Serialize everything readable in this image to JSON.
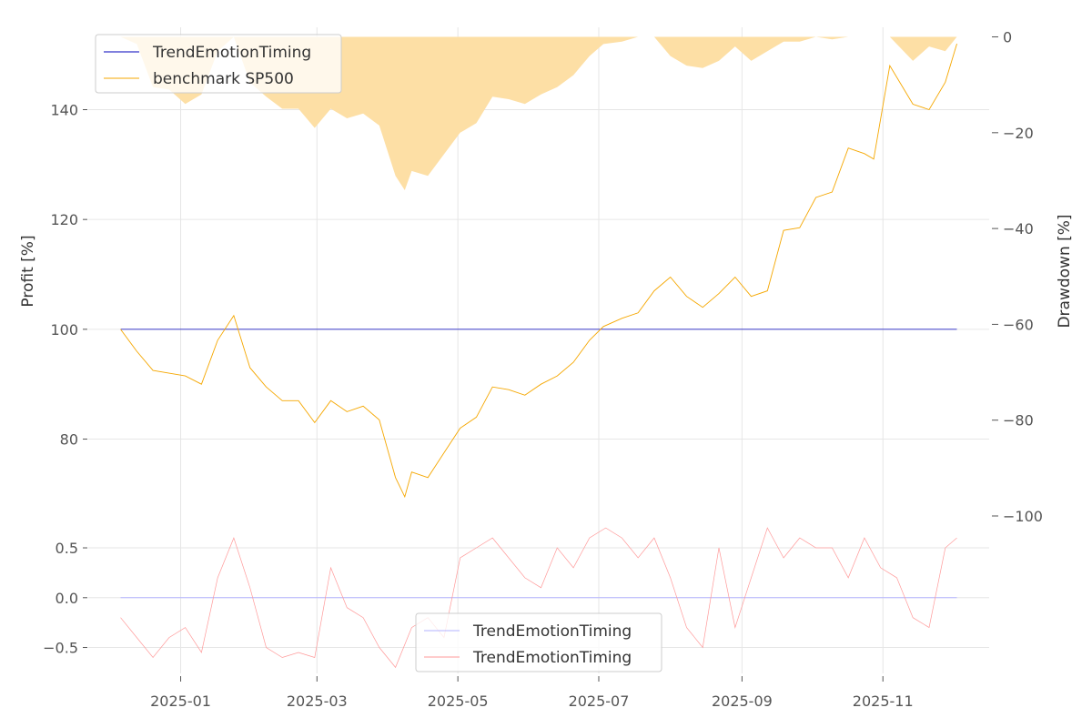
{
  "chart_data": [
    {
      "type": "line",
      "panel": "main",
      "ylabel": "Profit [%]",
      "ylabel_right": "Drawdown [%]",
      "x_dates": [
        "2024-12-06",
        "2024-12-13",
        "2024-12-20",
        "2024-12-27",
        "2025-01-03",
        "2025-01-10",
        "2025-01-17",
        "2025-01-24",
        "2025-01-31",
        "2025-02-07",
        "2025-02-14",
        "2025-02-21",
        "2025-02-28",
        "2025-03-07",
        "2025-03-14",
        "2025-03-21",
        "2025-03-28",
        "2025-04-04",
        "2025-04-08",
        "2025-04-11",
        "2025-04-18",
        "2025-04-25",
        "2025-05-02",
        "2025-05-09",
        "2025-05-16",
        "2025-05-23",
        "2025-05-30",
        "2025-06-06",
        "2025-06-13",
        "2025-06-20",
        "2025-06-27",
        "2025-07-03",
        "2025-07-11",
        "2025-07-18",
        "2025-07-25",
        "2025-08-01",
        "2025-08-08",
        "2025-08-15",
        "2025-08-22",
        "2025-08-29",
        "2025-09-05",
        "2025-09-12",
        "2025-09-19",
        "2025-09-26",
        "2025-10-03",
        "2025-10-10",
        "2025-10-17",
        "2025-10-24",
        "2025-10-28",
        "2025-11-04",
        "2025-11-14",
        "2025-11-21",
        "2025-11-28",
        "2025-12-03"
      ],
      "series": [
        {
          "name": "TrendEmotionTiming",
          "color": "#0000bb",
          "values": [
            100,
            100,
            100,
            100,
            100,
            100,
            100,
            100,
            100,
            100,
            100,
            100,
            100,
            100,
            100,
            100,
            100,
            100,
            100,
            100,
            100,
            100,
            100,
            100,
            100,
            100,
            100,
            100,
            100,
            100,
            100,
            100,
            100,
            100,
            100,
            100,
            100,
            100,
            100,
            100,
            100,
            100,
            100,
            100,
            100,
            100,
            100,
            100,
            100,
            100,
            100,
            100,
            100,
            100
          ]
        },
        {
          "name": "benchmark SP500",
          "color": "#f5a700",
          "values": [
            100,
            96,
            92.5,
            92,
            91.5,
            90,
            98,
            102.5,
            93,
            89.5,
            87,
            87,
            83,
            87,
            85,
            86,
            83.5,
            73,
            69.5,
            74,
            73,
            77.5,
            82,
            84,
            89.5,
            89,
            88,
            90,
            91.5,
            94,
            98,
            100.5,
            102,
            103,
            107,
            109.5,
            106,
            104,
            106.5,
            109.5,
            106,
            107,
            118,
            118.5,
            124,
            125,
            133,
            132,
            131,
            148,
            141,
            140,
            145,
            152
          ]
        }
      ],
      "drawdown": {
        "name": "Drawdown",
        "color": "#fddfa5",
        "values": [
          0,
          -1.5,
          -10.5,
          -11,
          -14,
          -12,
          -3,
          0,
          -9.5,
          -12.5,
          -15,
          -15,
          -19,
          -15,
          -17,
          -16,
          -18.5,
          -29,
          -32,
          -28,
          -29,
          -24.5,
          -20,
          -18,
          -12.5,
          -13,
          -14,
          -12,
          -10.5,
          -8,
          -4,
          -1.5,
          -1,
          0,
          0,
          -4,
          -6,
          -6.5,
          -5,
          -2,
          -5,
          -3,
          -1,
          -1,
          0,
          -0.5,
          0,
          0,
          0,
          0,
          -5,
          -2,
          -3,
          0
        ]
      },
      "ylim": [
        66,
        155
      ],
      "ylim_right": [
        -100,
        2
      ],
      "yticks": [
        "80",
        "100",
        "120",
        "140"
      ],
      "yticks_right": [
        "−100",
        "−80",
        "−60",
        "−40",
        "−20",
        "0"
      ],
      "grid": true,
      "legend": "top-left"
    },
    {
      "type": "line",
      "panel": "lower",
      "x_dates": [
        "2024-12-06",
        "2024-12-13",
        "2024-12-20",
        "2024-12-27",
        "2025-01-03",
        "2025-01-10",
        "2025-01-17",
        "2025-01-24",
        "2025-01-31",
        "2025-02-07",
        "2025-02-14",
        "2025-02-21",
        "2025-02-28",
        "2025-03-07",
        "2025-03-14",
        "2025-03-21",
        "2025-03-28",
        "2025-04-04",
        "2025-04-11",
        "2025-04-18",
        "2025-04-25",
        "2025-05-02",
        "2025-05-09",
        "2025-05-16",
        "2025-05-23",
        "2025-05-30",
        "2025-06-06",
        "2025-06-13",
        "2025-06-20",
        "2025-06-27",
        "2025-07-04",
        "2025-07-11",
        "2025-07-18",
        "2025-07-25",
        "2025-08-01",
        "2025-08-08",
        "2025-08-15",
        "2025-08-22",
        "2025-08-29",
        "2025-09-05",
        "2025-09-12",
        "2025-09-19",
        "2025-09-26",
        "2025-10-03",
        "2025-10-10",
        "2025-10-17",
        "2025-10-24",
        "2025-10-31",
        "2025-11-07",
        "2025-11-14",
        "2025-11-21",
        "2025-11-28",
        "2025-12-03"
      ],
      "series": [
        {
          "name": "TrendEmotionTiming",
          "color": "#b3b3ff",
          "values": [
            0,
            0,
            0,
            0,
            0,
            0,
            0,
            0,
            0,
            0,
            0,
            0,
            0,
            0,
            0,
            0,
            0,
            0,
            0,
            0,
            0,
            0,
            0,
            0,
            0,
            0,
            0,
            0,
            0,
            0,
            0,
            0,
            0,
            0,
            0,
            0,
            0,
            0,
            0,
            0,
            0,
            0,
            0,
            0,
            0,
            0,
            0,
            0,
            0,
            0,
            0,
            0,
            0
          ]
        },
        {
          "name": "TrendEmotionTiming",
          "color": "#ff9999",
          "values": [
            -0.2,
            -0.4,
            -0.6,
            -0.4,
            -0.3,
            -0.55,
            0.2,
            0.6,
            0.1,
            -0.5,
            -0.6,
            -0.55,
            -0.6,
            0.3,
            -0.1,
            -0.2,
            -0.5,
            -0.7,
            -0.3,
            -0.2,
            -0.4,
            0.4,
            0.5,
            0.6,
            0.4,
            0.2,
            0.1,
            0.5,
            0.3,
            0.6,
            0.7,
            0.6,
            0.4,
            0.6,
            0.2,
            -0.3,
            -0.5,
            0.5,
            -0.3,
            0.2,
            0.7,
            0.4,
            0.6,
            0.5,
            0.5,
            0.2,
            0.6,
            0.3,
            0.2,
            -0.2,
            -0.3,
            0.5,
            0.6
          ]
        }
      ],
      "ylim": [
        -0.76,
        0.82
      ],
      "yticks": [
        "−0.5",
        "0.0",
        "0.5"
      ],
      "grid": true,
      "legend": "bottom-center"
    }
  ],
  "x_axis": {
    "ticks": [
      {
        "date": "2025-01-01",
        "label": "2025-01"
      },
      {
        "date": "2025-03-01",
        "label": "2025-03"
      },
      {
        "date": "2025-05-01",
        "label": "2025-05"
      },
      {
        "date": "2025-07-01",
        "label": "2025-07"
      },
      {
        "date": "2025-09-01",
        "label": "2025-09"
      },
      {
        "date": "2025-11-01",
        "label": "2025-11"
      }
    ],
    "xlim": [
      "2024-11-22",
      "2025-12-17"
    ]
  }
}
